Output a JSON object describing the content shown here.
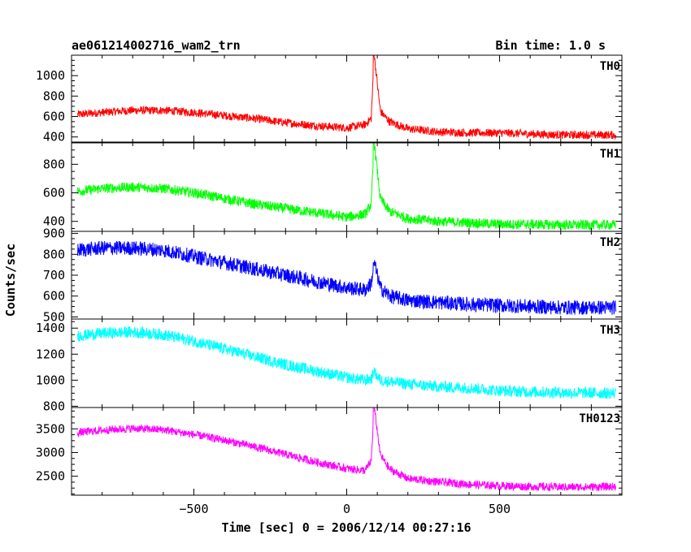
{
  "header": {
    "title": "ae061214002716_wam2_trn",
    "bin_time": "Bin time: 1.0 s"
  },
  "chart_data": {
    "type": "line",
    "title": "ae061214002716_wam2_trn",
    "subtitle": "Bin time: 1.0 s",
    "xlabel": "Time [sec] 0 = 2006/12/14 00:27:16",
    "ylabel": "Counts/sec",
    "xlim": [
      -900,
      900
    ],
    "x_ticks": [
      -500,
      0,
      500
    ],
    "grid": false,
    "panels": [
      {
        "name": "TH0",
        "color": "#ff0000",
        "ylim": [
          350,
          1200
        ],
        "y_ticks": [
          400,
          600,
          800,
          1000
        ],
        "noise": 80,
        "x": [
          -880,
          -800,
          -700,
          -600,
          -500,
          -400,
          -300,
          -200,
          -100,
          0,
          60,
          80,
          90,
          110,
          140,
          200,
          300,
          400,
          500,
          600,
          700,
          880
        ],
        "y": [
          620,
          640,
          660,
          660,
          640,
          610,
          580,
          540,
          510,
          490,
          520,
          580,
          1200,
          650,
          550,
          480,
          450,
          440,
          440,
          430,
          420,
          420
        ]
      },
      {
        "name": "TH1",
        "color": "#00ff00",
        "ylim": [
          330,
          950
        ],
        "y_ticks": [
          400,
          600,
          800
        ],
        "noise": 70,
        "x": [
          -880,
          -800,
          -700,
          -600,
          -500,
          -400,
          -300,
          -200,
          -100,
          0,
          60,
          80,
          90,
          110,
          140,
          200,
          300,
          400,
          500,
          600,
          700,
          880
        ],
        "y": [
          610,
          630,
          640,
          630,
          600,
          560,
          520,
          490,
          460,
          430,
          450,
          520,
          950,
          560,
          470,
          420,
          400,
          390,
          380,
          380,
          375,
          375
        ]
      },
      {
        "name": "TH2",
        "color": "#0000ff",
        "ylim": [
          490,
          910
        ],
        "y_ticks": [
          500,
          600,
          700,
          800,
          900
        ],
        "noise": 70,
        "x": [
          -880,
          -800,
          -700,
          -600,
          -500,
          -400,
          -300,
          -200,
          -100,
          0,
          60,
          80,
          90,
          110,
          140,
          200,
          300,
          400,
          500,
          600,
          700,
          880
        ],
        "y": [
          820,
          830,
          830,
          820,
          790,
          760,
          730,
          700,
          670,
          640,
          630,
          660,
          760,
          640,
          600,
          580,
          570,
          560,
          555,
          550,
          545,
          545
        ]
      },
      {
        "name": "TH3",
        "color": "#00ffff",
        "ylim": [
          790,
          1470
        ],
        "y_ticks": [
          800,
          1000,
          1200,
          1400
        ],
        "noise": 90,
        "x": [
          -880,
          -800,
          -700,
          -600,
          -500,
          -400,
          -300,
          -200,
          -100,
          0,
          60,
          80,
          90,
          110,
          140,
          200,
          300,
          400,
          500,
          600,
          700,
          880
        ],
        "y": [
          1340,
          1360,
          1370,
          1350,
          1300,
          1240,
          1180,
          1120,
          1070,
          1020,
          1000,
          1010,
          1060,
          1000,
          990,
          970,
          950,
          940,
          920,
          910,
          905,
          900
        ]
      },
      {
        "name": "TH0123",
        "color": "#ff00ff",
        "ylim": [
          2100,
          3950
        ],
        "y_ticks": [
          2500,
          3000,
          3500
        ],
        "noise": 170,
        "x": [
          -880,
          -800,
          -700,
          -600,
          -500,
          -400,
          -300,
          -200,
          -100,
          0,
          60,
          80,
          90,
          110,
          140,
          200,
          300,
          400,
          500,
          600,
          700,
          880
        ],
        "y": [
          3420,
          3470,
          3510,
          3480,
          3380,
          3260,
          3120,
          2960,
          2800,
          2660,
          2620,
          2820,
          3950,
          2950,
          2650,
          2450,
          2380,
          2330,
          2300,
          2280,
          2270,
          2280
        ]
      }
    ]
  }
}
